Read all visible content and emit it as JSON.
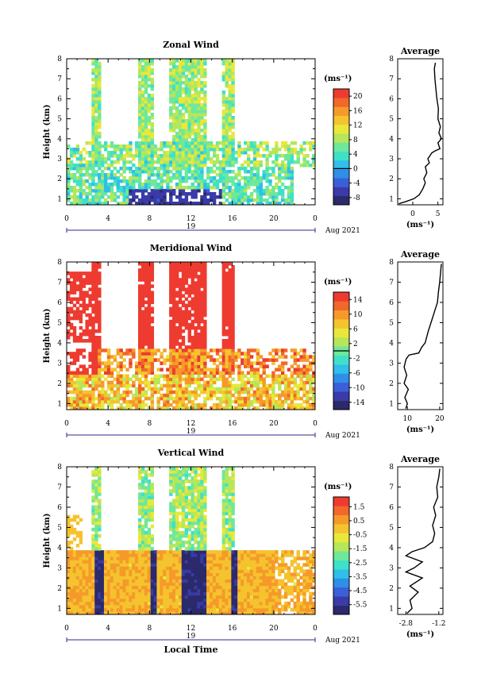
{
  "x_axis": {
    "ticks": [
      "0",
      "4",
      "8",
      "12",
      "16",
      "20",
      "0"
    ],
    "day_label": "19",
    "month_label": "Aug 2021",
    "xlabel": "Local Time"
  },
  "y_axis": {
    "label": "Height (km)",
    "ticks": [
      "1",
      "2",
      "3",
      "4",
      "5",
      "6",
      "7",
      "8"
    ]
  },
  "avg_panel_title": "Average",
  "unit_label": "(ms⁻¹)",
  "chart_data": [
    {
      "type": "heatmap",
      "title": "Zonal Wind",
      "ylabel": "Height (km)",
      "ylim": [
        0.7,
        8.0
      ],
      "xlim": [
        0,
        24
      ],
      "colorbar": {
        "min": -10,
        "max": 22,
        "ticks": [
          "20",
          "16",
          "12",
          "8",
          "4",
          "0",
          "-4",
          "-8"
        ],
        "tick_values": [
          20,
          16,
          12,
          8,
          4,
          0,
          -4,
          -8
        ],
        "marker_value": 0
      },
      "average_profile": {
        "title": "Average",
        "xlim": [
          -3,
          6
        ],
        "xticks": [
          "0",
          "5"
        ],
        "xtick_values": [
          0,
          5
        ],
        "xlabel": "(ms⁻¹)",
        "points": [
          [
            -2.8,
            0.75
          ],
          [
            -1.5,
            0.85
          ],
          [
            0.2,
            1.0
          ],
          [
            1.3,
            1.2
          ],
          [
            2.0,
            1.5
          ],
          [
            2.5,
            1.8
          ],
          [
            2.2,
            2.0
          ],
          [
            2.8,
            2.3
          ],
          [
            2.5,
            2.6
          ],
          [
            3.3,
            2.8
          ],
          [
            3.0,
            3.0
          ],
          [
            3.8,
            3.3
          ],
          [
            4.5,
            3.4
          ],
          [
            5.4,
            3.5
          ],
          [
            5.0,
            3.8
          ],
          [
            5.7,
            4.0
          ],
          [
            5.2,
            4.3
          ],
          [
            5.5,
            4.6
          ],
          [
            5.0,
            5.0
          ],
          [
            5.1,
            5.5
          ],
          [
            4.8,
            6.0
          ],
          [
            4.6,
            6.5
          ],
          [
            4.4,
            7.0
          ],
          [
            4.3,
            7.5
          ],
          [
            4.5,
            7.8
          ]
        ]
      }
    },
    {
      "type": "heatmap",
      "title": "Meridional Wind",
      "ylabel": "Height (km)",
      "ylim": [
        0.7,
        8.0
      ],
      "xlim": [
        0,
        24
      ],
      "colorbar": {
        "min": -16,
        "max": 16,
        "ticks": [
          "14",
          "10",
          "6",
          "2",
          "-2",
          "-6",
          "-10",
          "-14"
        ],
        "tick_values": [
          14,
          10,
          6,
          2,
          -2,
          -6,
          -10,
          -14
        ],
        "marker_value": 0
      },
      "average_profile": {
        "title": "Average",
        "xlim": [
          7,
          21
        ],
        "xticks": [
          "10",
          "20"
        ],
        "xtick_values": [
          10,
          20
        ],
        "xlabel": "(ms⁻¹)",
        "points": [
          [
            9.5,
            0.75
          ],
          [
            10.0,
            1.0
          ],
          [
            9.2,
            1.3
          ],
          [
            10.3,
            1.7
          ],
          [
            9.0,
            2.0
          ],
          [
            9.8,
            2.4
          ],
          [
            9.0,
            2.8
          ],
          [
            9.6,
            3.2
          ],
          [
            10.5,
            3.4
          ],
          [
            13.5,
            3.5
          ],
          [
            14.5,
            3.8
          ],
          [
            15.5,
            4.0
          ],
          [
            16.5,
            4.6
          ],
          [
            17.5,
            5.1
          ],
          [
            18.5,
            5.6
          ],
          [
            19.3,
            6.0
          ],
          [
            19.6,
            6.5
          ],
          [
            20.0,
            7.0
          ],
          [
            20.3,
            7.5
          ],
          [
            20.5,
            7.9
          ]
        ]
      }
    },
    {
      "type": "heatmap",
      "title": "Vertical Wind",
      "ylabel": "Height (km)",
      "xlabel": "Local Time",
      "ylim": [
        0.7,
        8.0
      ],
      "xlim": [
        0,
        24
      ],
      "colorbar": {
        "min": -6.2,
        "max": 2.2,
        "ticks": [
          "1.5",
          "0.5",
          "-0.5",
          "-1.5",
          "-2.5",
          "-3.5",
          "-4.5",
          "-5.5"
        ],
        "tick_values": [
          1.5,
          0.5,
          -0.5,
          -1.5,
          -2.5,
          -3.5,
          -4.5,
          -5.5
        ]
      },
      "average_profile": {
        "title": "Average",
        "xlim": [
          -3.2,
          -1.0
        ],
        "xticks": [
          "-2.8",
          "-1.2"
        ],
        "xtick_values": [
          -2.8,
          -1.2
        ],
        "xlabel": "(ms⁻¹)",
        "points": [
          [
            -2.75,
            0.75
          ],
          [
            -2.5,
            1.0
          ],
          [
            -2.6,
            1.4
          ],
          [
            -2.2,
            1.8
          ],
          [
            -2.6,
            2.1
          ],
          [
            -2.0,
            2.5
          ],
          [
            -2.8,
            2.8
          ],
          [
            -2.4,
            3.0
          ],
          [
            -2.0,
            3.3
          ],
          [
            -2.8,
            3.6
          ],
          [
            -2.5,
            3.8
          ],
          [
            -1.9,
            4.0
          ],
          [
            -1.5,
            4.3
          ],
          [
            -1.4,
            4.7
          ],
          [
            -1.5,
            5.1
          ],
          [
            -1.35,
            5.6
          ],
          [
            -1.45,
            6.0
          ],
          [
            -1.25,
            6.5
          ],
          [
            -1.3,
            7.0
          ],
          [
            -1.2,
            7.5
          ],
          [
            -1.15,
            7.9
          ]
        ]
      }
    }
  ]
}
